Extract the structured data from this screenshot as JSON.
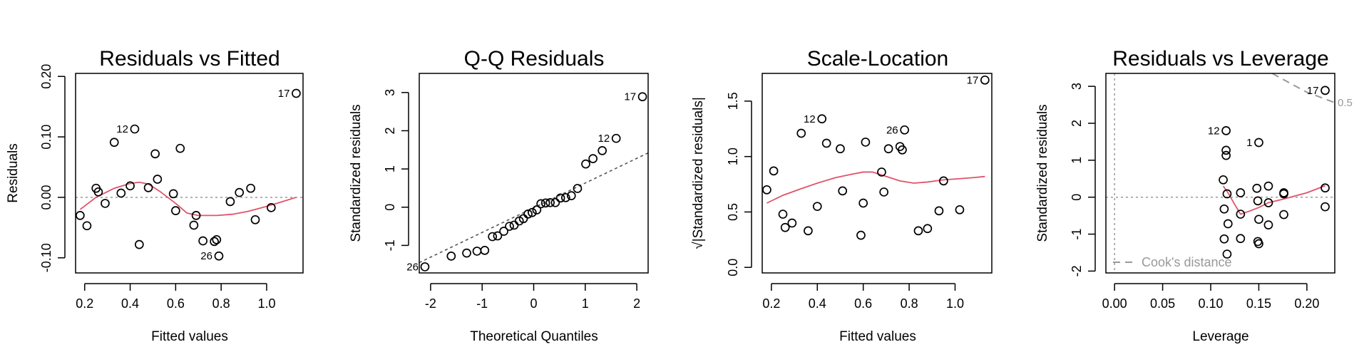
{
  "colors": {
    "smooth": "#DF536B",
    "reference": "#555555",
    "zero_line": "#999999",
    "cook": "#999999"
  },
  "chart_data": [
    {
      "type": "scatter",
      "title": "Residuals vs Fitted",
      "xlabel": "Fitted values",
      "ylabel": "Residuals",
      "xlim": [
        0.16,
        1.16
      ],
      "ylim": [
        -0.125,
        0.205
      ],
      "xticks": [
        0.2,
        0.4,
        0.6,
        0.8,
        1.0
      ],
      "xtick_labels": [
        "0.2",
        "0.4",
        "0.6",
        "0.8",
        "1.0"
      ],
      "yticks": [
        -0.1,
        0,
        0.1,
        0.2
      ],
      "ytick_labels": [
        "-0.10",
        "0.00",
        "0.10",
        "0.20"
      ],
      "points": [
        {
          "x": 0.18,
          "y": -0.03
        },
        {
          "x": 0.21,
          "y": -0.047
        },
        {
          "x": 0.25,
          "y": 0.015
        },
        {
          "x": 0.26,
          "y": 0.009
        },
        {
          "x": 0.29,
          "y": -0.01
        },
        {
          "x": 0.33,
          "y": 0.091
        },
        {
          "x": 0.36,
          "y": 0.007
        },
        {
          "x": 0.4,
          "y": 0.019
        },
        {
          "x": 0.42,
          "y": 0.113,
          "label": "12"
        },
        {
          "x": 0.44,
          "y": -0.078
        },
        {
          "x": 0.48,
          "y": 0.016
        },
        {
          "x": 0.51,
          "y": 0.072
        },
        {
          "x": 0.52,
          "y": 0.03
        },
        {
          "x": 0.59,
          "y": 0.006
        },
        {
          "x": 0.6,
          "y": -0.022
        },
        {
          "x": 0.62,
          "y": 0.081
        },
        {
          "x": 0.68,
          "y": -0.046
        },
        {
          "x": 0.69,
          "y": -0.03
        },
        {
          "x": 0.72,
          "y": -0.072
        },
        {
          "x": 0.77,
          "y": -0.073
        },
        {
          "x": 0.78,
          "y": -0.07
        },
        {
          "x": 0.79,
          "y": -0.097,
          "label": "26"
        },
        {
          "x": 0.84,
          "y": -0.007
        },
        {
          "x": 0.88,
          "y": 0.008
        },
        {
          "x": 0.93,
          "y": 0.015
        },
        {
          "x": 0.95,
          "y": -0.037
        },
        {
          "x": 1.02,
          "y": -0.017
        },
        {
          "x": 1.13,
          "y": 0.172,
          "label": "17"
        }
      ],
      "smooth": [
        [
          0.18,
          -0.02
        ],
        [
          0.25,
          0.0
        ],
        [
          0.33,
          0.015
        ],
        [
          0.4,
          0.023
        ],
        [
          0.44,
          0.025
        ],
        [
          0.48,
          0.022
        ],
        [
          0.53,
          0.01
        ],
        [
          0.6,
          -0.01
        ],
        [
          0.65,
          -0.026
        ],
        [
          0.7,
          -0.03
        ],
        [
          0.78,
          -0.03
        ],
        [
          0.85,
          -0.028
        ],
        [
          0.92,
          -0.023
        ],
        [
          1.0,
          -0.015
        ],
        [
          1.07,
          -0.007
        ],
        [
          1.13,
          0.0
        ]
      ],
      "hline": 0
    },
    {
      "type": "scatter",
      "title": "Q-Q Residuals",
      "xlabel": "Theoretical Quantiles",
      "ylabel": "Standardized residuals",
      "xlim": [
        -2.22,
        2.22
      ],
      "ylim": [
        -1.72,
        3.5
      ],
      "xticks": [
        -2,
        -1,
        0,
        1,
        2
      ],
      "xtick_labels": [
        "-2",
        "-1",
        "0",
        "1",
        "2"
      ],
      "yticks": [
        -1,
        0,
        1,
        2,
        3
      ],
      "ytick_labels": [
        "-1",
        "0",
        "1",
        "2",
        "3"
      ],
      "points": [
        {
          "x": -2.11,
          "y": -1.56,
          "label": "26"
        },
        {
          "x": -1.6,
          "y": -1.28
        },
        {
          "x": -1.3,
          "y": -1.2
        },
        {
          "x": -1.1,
          "y": -1.15
        },
        {
          "x": -0.95,
          "y": -1.13
        },
        {
          "x": -0.8,
          "y": -0.77
        },
        {
          "x": -0.7,
          "y": -0.75
        },
        {
          "x": -0.58,
          "y": -0.63
        },
        {
          "x": -0.47,
          "y": -0.5
        },
        {
          "x": -0.38,
          "y": -0.47
        },
        {
          "x": -0.28,
          "y": -0.36
        },
        {
          "x": -0.2,
          "y": -0.3
        },
        {
          "x": -0.11,
          "y": -0.18
        },
        {
          "x": -0.03,
          "y": -0.14
        },
        {
          "x": 0.06,
          "y": -0.07
        },
        {
          "x": 0.14,
          "y": 0.09
        },
        {
          "x": 0.23,
          "y": 0.11
        },
        {
          "x": 0.32,
          "y": 0.12
        },
        {
          "x": 0.42,
          "y": 0.12
        },
        {
          "x": 0.52,
          "y": 0.24
        },
        {
          "x": 0.62,
          "y": 0.25
        },
        {
          "x": 0.73,
          "y": 0.3
        },
        {
          "x": 0.85,
          "y": 0.49
        },
        {
          "x": 1.01,
          "y": 1.13
        },
        {
          "x": 1.15,
          "y": 1.27
        },
        {
          "x": 1.33,
          "y": 1.48
        },
        {
          "x": 1.6,
          "y": 1.8,
          "label": "12"
        },
        {
          "x": 2.11,
          "y": 2.89,
          "label": "17"
        }
      ],
      "refline": {
        "x1": -2.22,
        "y1": -1.45,
        "x2": 2.22,
        "y2": 1.42
      }
    },
    {
      "type": "scatter",
      "title": "Scale-Location",
      "xlabel": "Fitted values",
      "ylabel": "√|Standardized residuals|",
      "xlim": [
        0.16,
        1.16
      ],
      "ylim": [
        -0.05,
        1.75
      ],
      "xticks": [
        0.2,
        0.4,
        0.6,
        0.8,
        1.0
      ],
      "xtick_labels": [
        "0.2",
        "0.4",
        "0.6",
        "0.8",
        "1.0"
      ],
      "yticks": [
        0,
        0.5,
        1.0,
        1.5
      ],
      "ytick_labels": [
        "0.0",
        "0.5",
        "1.0",
        "1.5"
      ],
      "points": [
        {
          "x": 0.18,
          "y": 0.7
        },
        {
          "x": 0.21,
          "y": 0.87
        },
        {
          "x": 0.25,
          "y": 0.48
        },
        {
          "x": 0.26,
          "y": 0.36
        },
        {
          "x": 0.29,
          "y": 0.4
        },
        {
          "x": 0.33,
          "y": 1.21
        },
        {
          "x": 0.36,
          "y": 0.33
        },
        {
          "x": 0.4,
          "y": 0.55
        },
        {
          "x": 0.42,
          "y": 1.34,
          "label": "12"
        },
        {
          "x": 0.44,
          "y": 1.12
        },
        {
          "x": 0.5,
          "y": 1.07
        },
        {
          "x": 0.51,
          "y": 0.69
        },
        {
          "x": 0.59,
          "y": 0.29
        },
        {
          "x": 0.6,
          "y": 0.58
        },
        {
          "x": 0.61,
          "y": 1.13
        },
        {
          "x": 0.68,
          "y": 0.86
        },
        {
          "x": 0.69,
          "y": 0.68
        },
        {
          "x": 0.71,
          "y": 1.07
        },
        {
          "x": 0.76,
          "y": 1.09
        },
        {
          "x": 0.77,
          "y": 1.06
        },
        {
          "x": 0.78,
          "y": 1.24,
          "label": "26"
        },
        {
          "x": 0.84,
          "y": 0.33
        },
        {
          "x": 0.88,
          "y": 0.35
        },
        {
          "x": 0.93,
          "y": 0.51
        },
        {
          "x": 0.95,
          "y": 0.78
        },
        {
          "x": 1.02,
          "y": 0.52
        },
        {
          "x": 1.13,
          "y": 1.69,
          "label": "17"
        }
      ],
      "smooth": [
        [
          0.18,
          0.58
        ],
        [
          0.25,
          0.65
        ],
        [
          0.33,
          0.71
        ],
        [
          0.4,
          0.76
        ],
        [
          0.48,
          0.81
        ],
        [
          0.55,
          0.84
        ],
        [
          0.6,
          0.86
        ],
        [
          0.64,
          0.86
        ],
        [
          0.7,
          0.82
        ],
        [
          0.76,
          0.78
        ],
        [
          0.82,
          0.76
        ],
        [
          0.88,
          0.77
        ],
        [
          0.95,
          0.79
        ],
        [
          1.02,
          0.8
        ],
        [
          1.08,
          0.81
        ],
        [
          1.13,
          0.82
        ]
      ]
    },
    {
      "type": "scatter",
      "title": "Residuals vs Leverage",
      "xlabel": "Leverage",
      "ylabel": "Standardized residuals",
      "xlim": [
        -0.009,
        0.229
      ],
      "ylim": [
        -2.05,
        3.35
      ],
      "xticks": [
        0,
        0.05,
        0.1,
        0.15,
        0.2
      ],
      "xtick_labels": [
        "0.00",
        "0.05",
        "0.10",
        "0.15",
        "0.20"
      ],
      "yticks": [
        -2,
        -1,
        0,
        1,
        2,
        3
      ],
      "ytick_labels": [
        "-2",
        "-1",
        "0",
        "1",
        "2",
        "3"
      ],
      "points": [
        {
          "x": 0.113,
          "y": 0.47
        },
        {
          "x": 0.114,
          "y": -0.32
        },
        {
          "x": 0.114,
          "y": -1.13
        },
        {
          "x": 0.116,
          "y": 1.8,
          "label": "12"
        },
        {
          "x": 0.116,
          "y": 1.27
        },
        {
          "x": 0.116,
          "y": 1.13
        },
        {
          "x": 0.117,
          "y": -1.54
        },
        {
          "x": 0.117,
          "y": 0.09
        },
        {
          "x": 0.118,
          "y": -0.72
        },
        {
          "x": 0.131,
          "y": 0.12
        },
        {
          "x": 0.131,
          "y": -0.46
        },
        {
          "x": 0.131,
          "y": -1.12
        },
        {
          "x": 0.148,
          "y": 0.24
        },
        {
          "x": 0.149,
          "y": -0.1
        },
        {
          "x": 0.149,
          "y": -1.2
        },
        {
          "x": 0.15,
          "y": -1.26
        },
        {
          "x": 0.15,
          "y": -0.6
        },
        {
          "x": 0.15,
          "y": 1.48,
          "label": "1"
        },
        {
          "x": 0.16,
          "y": 0.3
        },
        {
          "x": 0.16,
          "y": -0.15
        },
        {
          "x": 0.16,
          "y": -0.75
        },
        {
          "x": 0.176,
          "y": 0.12
        },
        {
          "x": 0.176,
          "y": 0.09
        },
        {
          "x": 0.176,
          "y": -0.47
        },
        {
          "x": 0.219,
          "y": 0.25
        },
        {
          "x": 0.219,
          "y": -0.26
        },
        {
          "x": 0.219,
          "y": 2.89,
          "label": "17"
        }
      ],
      "smooth": [
        [
          0.113,
          0.3
        ],
        [
          0.118,
          0.12
        ],
        [
          0.125,
          -0.2
        ],
        [
          0.131,
          -0.46
        ],
        [
          0.14,
          -0.38
        ],
        [
          0.15,
          -0.28
        ],
        [
          0.16,
          -0.15
        ],
        [
          0.176,
          -0.05
        ],
        [
          0.2,
          0.12
        ],
        [
          0.219,
          0.31
        ]
      ],
      "hline": 0,
      "vline": 0,
      "cook_curve": [
        [
          0.164,
          3.35
        ],
        [
          0.18,
          3.12
        ],
        [
          0.2,
          2.84
        ],
        [
          0.229,
          2.56
        ]
      ],
      "cook_contour_label": "0.5",
      "legend": "Cook's distance"
    }
  ]
}
